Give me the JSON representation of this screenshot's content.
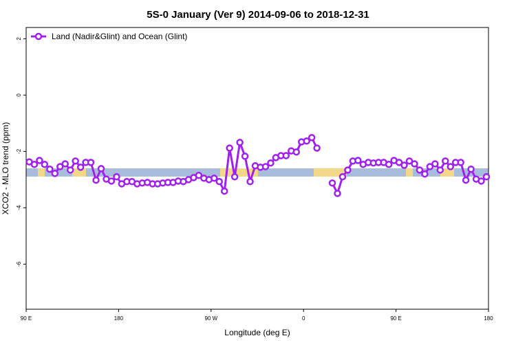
{
  "chart_data": {
    "type": "line",
    "title": "5S-0 January (Ver 9)   2014-09-06 to 2018-12-31",
    "xlabel": "Longitude (deg E)",
    "ylabel": "XCO2 - MLO trend (ppm)",
    "xlim": [
      90,
      540
    ],
    "ylim": [
      -7.6,
      2.4
    ],
    "xticks": [
      {
        "value": 90,
        "label": "90 E"
      },
      {
        "value": 180,
        "label": "180"
      },
      {
        "value": 270,
        "label": "90 W"
      },
      {
        "value": 360,
        "label": "0"
      },
      {
        "value": 450,
        "label": "90 E"
      },
      {
        "value": 540,
        "label": "180"
      }
    ],
    "yticks": [
      2,
      0,
      -2,
      -4,
      -6
    ],
    "legend": "upper left",
    "x": [
      93,
      98,
      103,
      108,
      113,
      118,
      123,
      128,
      133,
      138,
      143,
      148,
      153,
      158,
      163,
      168,
      173,
      178,
      183,
      188,
      193,
      198,
      203,
      208,
      213,
      218,
      223,
      228,
      233,
      238,
      243,
      248,
      253,
      258,
      263,
      268,
      273,
      278,
      283,
      288,
      293,
      298,
      303,
      308,
      313,
      318,
      323,
      328,
      333,
      338,
      343,
      348,
      353,
      358,
      363,
      368,
      373,
      378,
      383,
      388,
      393,
      398,
      403,
      408,
      413,
      418,
      423,
      428,
      433,
      438,
      443,
      448,
      453,
      458,
      463,
      468,
      473,
      478,
      483,
      488,
      493,
      498,
      503,
      508,
      513,
      518,
      523,
      528,
      533,
      538
    ],
    "series": [
      {
        "name": "Land (Nadir&Glint) and Ocean (Glint)",
        "color": "#a020f0",
        "values": [
          -2.37,
          -2.46,
          -2.32,
          -2.46,
          -2.63,
          -2.78,
          -2.54,
          -2.44,
          -2.66,
          -2.34,
          -2.56,
          -2.39,
          -2.39,
          -3.02,
          -2.61,
          -2.98,
          -3.05,
          -2.9,
          -3.15,
          -3.07,
          -3.07,
          -3.15,
          -3.12,
          -3.1,
          -3.15,
          -3.15,
          -3.12,
          -3.1,
          -3.1,
          -3.05,
          -3.07,
          -3.0,
          -2.93,
          -2.85,
          -2.95,
          -3.0,
          -2.95,
          -3.07,
          -3.41,
          -1.88,
          -2.9,
          -1.68,
          -2.17,
          -3.07,
          -2.51,
          -2.56,
          -2.54,
          -2.41,
          -2.22,
          -2.15,
          -2.15,
          -1.98,
          -2.02,
          -1.66,
          -1.63,
          -1.51,
          -1.88,
          null,
          null,
          -3.12,
          -3.49,
          -2.9,
          -2.66,
          -2.34,
          -2.32,
          -2.46,
          -2.39,
          -2.41,
          -2.39,
          -2.39,
          -2.46,
          -2.32,
          -2.39,
          -2.49,
          -2.34,
          -2.44,
          -2.66,
          -2.8,
          -2.54,
          -2.44,
          -2.66,
          -2.34,
          -2.54,
          -2.39,
          -2.39,
          -3.02,
          -2.63,
          -2.98,
          -3.05,
          -2.9
        ]
      }
    ]
  }
}
